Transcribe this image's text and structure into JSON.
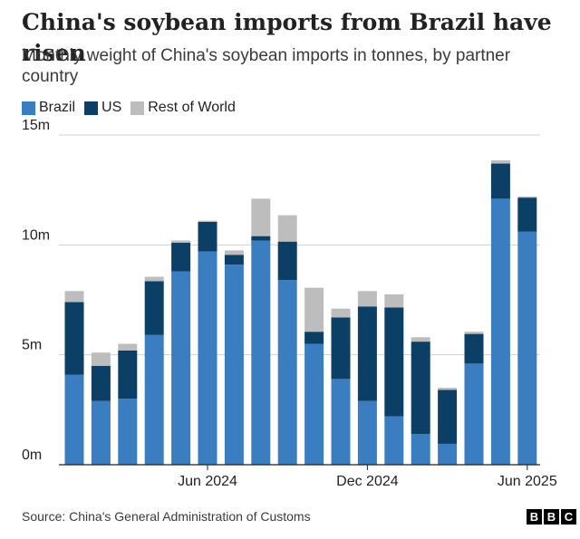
{
  "title": "China's soybean imports from Brazil have risen",
  "subtitle": "Monthly weight of China's soybean imports in tonnes, by partner country",
  "source": "Source: China's General Administration of Customs",
  "logo": [
    "B",
    "B",
    "C"
  ],
  "colors": {
    "brazil": "#3a7dc0",
    "us": "#0b3f66",
    "rest": "#bdbdbd",
    "grid": "#d0d0d0",
    "axis": "#222222"
  },
  "chart_data": {
    "type": "bar",
    "stacked": true,
    "title": "China's soybean imports from Brazil have risen",
    "ylim": [
      0,
      15
    ],
    "y_ticks": [
      {
        "value": 0,
        "label": "0m"
      },
      {
        "value": 5,
        "label": "5m"
      },
      {
        "value": 10,
        "label": "10m"
      },
      {
        "value": 15,
        "label": "15m"
      }
    ],
    "x_ticks": [
      {
        "index": 5,
        "label": "Jun 2024"
      },
      {
        "index": 11,
        "label": "Dec 2024"
      },
      {
        "index": 17,
        "label": "Jun 2025"
      }
    ],
    "categories": [
      "Jan 2024",
      "Feb 2024",
      "Mar 2024",
      "Apr 2024",
      "May 2024",
      "Jun 2024",
      "Jul 2024",
      "Aug 2024",
      "Sep 2024",
      "Oct 2024",
      "Nov 2024",
      "Dec 2024",
      "Jan 2025",
      "Feb 2025",
      "Mar 2025",
      "Apr 2025",
      "May 2025",
      "Jun 2025"
    ],
    "grid": true,
    "legend_position": "top-left",
    "series": [
      {
        "name": "Brazil",
        "color_key": "brazil",
        "values": [
          4.1,
          2.9,
          3.0,
          5.9,
          8.8,
          9.7,
          9.1,
          10.2,
          8.4,
          5.5,
          3.9,
          2.9,
          2.2,
          1.4,
          0.95,
          4.6,
          12.1,
          10.6
        ]
      },
      {
        "name": "US",
        "color_key": "us",
        "values": [
          3.3,
          1.6,
          2.2,
          2.45,
          1.3,
          1.35,
          0.45,
          0.2,
          1.75,
          0.55,
          2.8,
          4.3,
          4.95,
          4.2,
          2.45,
          1.35,
          1.6,
          1.55
        ]
      },
      {
        "name": "Rest of World",
        "color_key": "rest",
        "values": [
          0.5,
          0.6,
          0.3,
          0.2,
          0.1,
          0.05,
          0.2,
          1.7,
          1.2,
          2.0,
          0.4,
          0.7,
          0.6,
          0.2,
          0.1,
          0.1,
          0.15,
          0.05
        ]
      }
    ]
  }
}
